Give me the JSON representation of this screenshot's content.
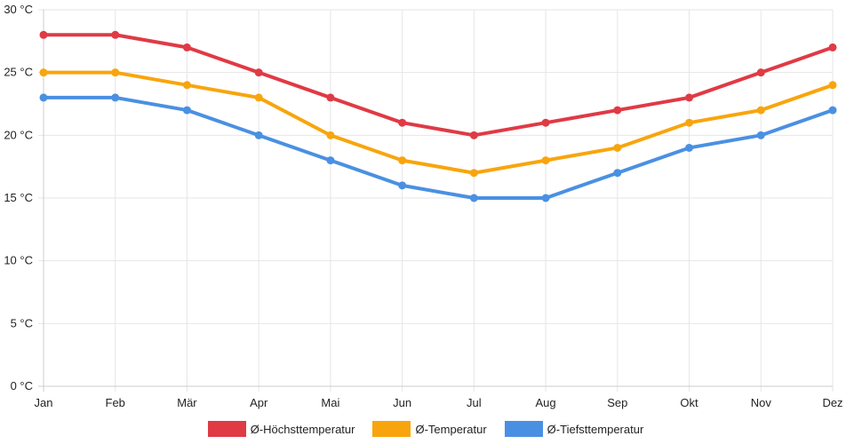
{
  "chart_data": {
    "type": "line",
    "title": "",
    "xlabel": "",
    "ylabel": "",
    "categories": [
      "Jan",
      "Feb",
      "Mär",
      "Apr",
      "Mai",
      "Jun",
      "Jul",
      "Aug",
      "Sep",
      "Okt",
      "Nov",
      "Dez"
    ],
    "ylim": [
      0,
      30
    ],
    "yticks": [
      "0 °C",
      "5 °C",
      "10 °C",
      "15 °C",
      "20 °C",
      "25 °C",
      "30 °C"
    ],
    "ytick_values": [
      0,
      5,
      10,
      15,
      20,
      25,
      30
    ],
    "grid": true,
    "legend_position": "bottom-center",
    "series": [
      {
        "name": "Ø-Höchsttemperatur",
        "color": "#e03a45",
        "values": [
          28,
          28,
          27,
          25,
          23,
          21,
          20,
          21,
          22,
          23,
          25,
          27
        ]
      },
      {
        "name": "Ø-Temperatur",
        "color": "#f8a50d",
        "values": [
          25,
          25,
          24,
          23,
          20,
          18,
          17,
          18,
          19,
          21,
          22,
          24
        ]
      },
      {
        "name": "Ø-Tiefsttemperatur",
        "color": "#4a90e2",
        "values": [
          23,
          23,
          22,
          20,
          18,
          16,
          15,
          15,
          17,
          19,
          20,
          22
        ]
      }
    ]
  }
}
